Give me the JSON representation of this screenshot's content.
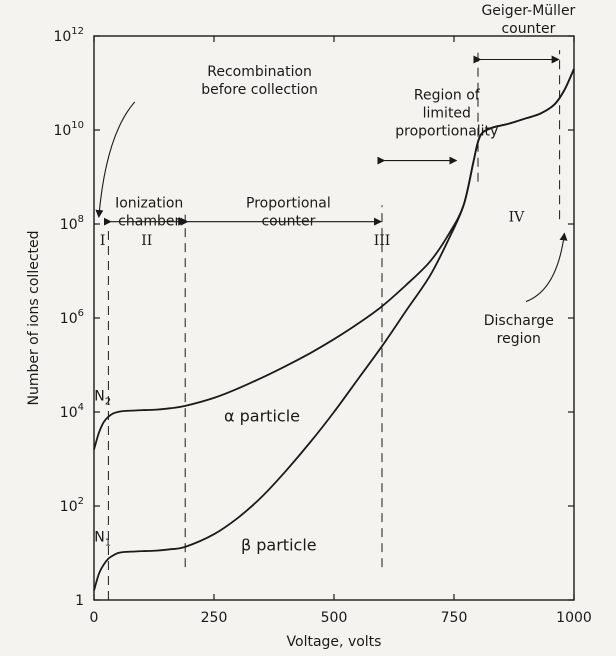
{
  "chart_data": {
    "type": "line",
    "title": "",
    "xlabel": "Voltage, volts",
    "ylabel": "Number of ions collected",
    "xlim": [
      0,
      1000
    ],
    "ylim_log10": [
      0,
      12
    ],
    "yscale": "log",
    "grid": false,
    "x_ticks": [
      {
        "value": 0,
        "label": "0"
      },
      {
        "value": 250,
        "label": "250"
      },
      {
        "value": 500,
        "label": "500"
      },
      {
        "value": 750,
        "label": "750"
      },
      {
        "value": 1000,
        "label": "1000"
      }
    ],
    "y_ticks": [
      {
        "exp": 0,
        "base": "1",
        "sup": ""
      },
      {
        "exp": 2,
        "base": "10",
        "sup": "2"
      },
      {
        "exp": 4,
        "base": "10",
        "sup": "4"
      },
      {
        "exp": 6,
        "base": "10",
        "sup": "6"
      },
      {
        "exp": 8,
        "base": "10",
        "sup": "8"
      },
      {
        "exp": 10,
        "base": "10",
        "sup": "10"
      },
      {
        "exp": 12,
        "base": "10",
        "sup": "12"
      }
    ],
    "series": [
      {
        "name": "α particle",
        "points": [
          [
            0,
            3.2
          ],
          [
            10,
            3.55
          ],
          [
            20,
            3.78
          ],
          [
            30,
            3.9
          ],
          [
            40,
            3.97
          ],
          [
            50,
            4.0
          ],
          [
            60,
            4.02
          ],
          [
            80,
            4.03
          ],
          [
            100,
            4.04
          ],
          [
            130,
            4.05
          ],
          [
            160,
            4.08
          ],
          [
            190,
            4.13
          ],
          [
            250,
            4.3
          ],
          [
            300,
            4.5
          ],
          [
            350,
            4.73
          ],
          [
            400,
            4.98
          ],
          [
            450,
            5.25
          ],
          [
            500,
            5.55
          ],
          [
            550,
            5.88
          ],
          [
            600,
            6.25
          ],
          [
            650,
            6.7
          ],
          [
            700,
            7.2
          ],
          [
            740,
            7.8
          ],
          [
            770,
            8.4
          ],
          [
            790,
            9.3
          ],
          [
            800,
            9.75
          ],
          [
            810,
            9.95
          ],
          [
            830,
            10.05
          ],
          [
            850,
            10.1
          ],
          [
            870,
            10.15
          ],
          [
            900,
            10.25
          ],
          [
            930,
            10.35
          ],
          [
            960,
            10.55
          ],
          [
            980,
            10.85
          ],
          [
            1000,
            11.3
          ]
        ]
      },
      {
        "name": "β particle",
        "points": [
          [
            0,
            0.2
          ],
          [
            10,
            0.55
          ],
          [
            20,
            0.75
          ],
          [
            30,
            0.88
          ],
          [
            40,
            0.95
          ],
          [
            50,
            1.0
          ],
          [
            60,
            1.02
          ],
          [
            80,
            1.03
          ],
          [
            100,
            1.04
          ],
          [
            130,
            1.05
          ],
          [
            160,
            1.08
          ],
          [
            190,
            1.13
          ],
          [
            250,
            1.4
          ],
          [
            300,
            1.75
          ],
          [
            350,
            2.2
          ],
          [
            400,
            2.75
          ],
          [
            450,
            3.35
          ],
          [
            500,
            4.0
          ],
          [
            550,
            4.7
          ],
          [
            600,
            5.4
          ],
          [
            650,
            6.15
          ],
          [
            700,
            6.9
          ],
          [
            740,
            7.7
          ],
          [
            770,
            8.4
          ],
          [
            790,
            9.3
          ],
          [
            800,
            9.75
          ],
          [
            810,
            9.95
          ],
          [
            830,
            10.05
          ],
          [
            850,
            10.1
          ],
          [
            870,
            10.15
          ],
          [
            900,
            10.25
          ],
          [
            930,
            10.35
          ],
          [
            960,
            10.55
          ],
          [
            980,
            10.85
          ],
          [
            1000,
            11.3
          ]
        ]
      }
    ],
    "region_boundaries": [
      {
        "x": 30,
        "from": 0,
        "to": 7.9
      },
      {
        "x": 190,
        "from": 0.7,
        "to": 8.2
      },
      {
        "x": 600,
        "from": 0.7,
        "to": 8.4
      },
      {
        "x": 800,
        "from": 8.9,
        "to": 11.7
      },
      {
        "x": 970,
        "from": 8.1,
        "to": 11.7
      }
    ],
    "region_labels": [
      {
        "text": "I",
        "x": 18,
        "y": 7.55
      },
      {
        "text": "II",
        "x": 110,
        "y": 7.55
      },
      {
        "text": "III",
        "x": 600,
        "y": 7.55
      },
      {
        "text": "IV",
        "x": 880,
        "y": 8.05
      }
    ],
    "range_arrows": [
      {
        "from": 35,
        "to": 190,
        "y": 8.05
      },
      {
        "from": 195,
        "to": 598,
        "y": 8.05
      },
      {
        "from": 605,
        "to": 755,
        "y": 9.35
      },
      {
        "from": 805,
        "to": 968,
        "y": 11.5
      }
    ],
    "annotations": [
      {
        "id": "recombination",
        "lines": [
          "Recombination",
          "before collection"
        ],
        "x": 345,
        "y": 11.15
      },
      {
        "id": "ionization",
        "lines": [
          "Ionization",
          "chamber"
        ],
        "x": 115,
        "y": 8.35
      },
      {
        "id": "proportional",
        "lines": [
          "Proportional",
          "counter"
        ],
        "x": 405,
        "y": 8.35
      },
      {
        "id": "limited",
        "lines": [
          "Region of",
          "limited",
          "proportionality"
        ],
        "x": 735,
        "y": 10.65
      },
      {
        "id": "geiger",
        "lines": [
          "Geiger-Müller",
          "counter"
        ],
        "x": 905,
        "y": 12.45
      },
      {
        "id": "discharge",
        "lines": [
          "Discharge",
          "region"
        ],
        "x": 885,
        "y": 5.85
      }
    ],
    "point_labels": [
      {
        "base": "N",
        "sub": "2",
        "x": 18,
        "y": 4.25
      },
      {
        "base": "N",
        "sub": "1",
        "x": 18,
        "y": 1.25
      }
    ],
    "series_labels": [
      {
        "text": "α particle",
        "x": 350,
        "y": 3.8
      },
      {
        "text": "β particle",
        "x": 385,
        "y": 1.05
      }
    ],
    "pointer_arrows": [
      {
        "from": [
          85,
          10.6
        ],
        "to": [
          10,
          8.15
        ],
        "ctrl": [
          25,
          9.9
        ]
      },
      {
        "from": [
          900,
          6.35
        ],
        "to": [
          980,
          7.8
        ],
        "ctrl": [
          965,
          6.6
        ]
      }
    ]
  }
}
